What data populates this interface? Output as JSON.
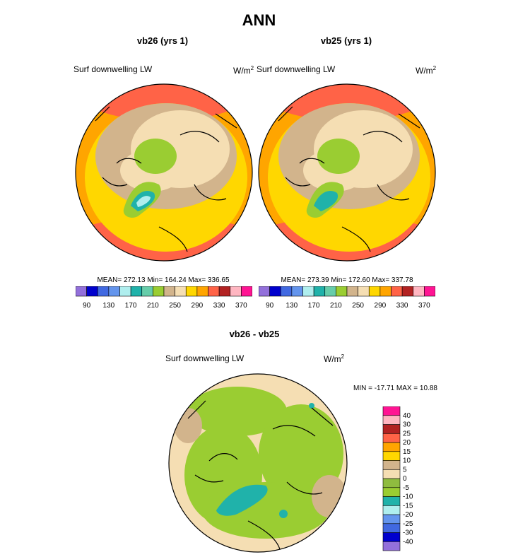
{
  "main_title": "ANN",
  "panels": [
    {
      "title": "vb26 (yrs 1)",
      "field_label": "Surf downwelling LW",
      "unit": "W/m",
      "unit_exp": "2",
      "stats": "MEAN= 272.13  Min= 164.24  Max= 336.65",
      "center_value": "180-190"
    },
    {
      "title": "vb25 (yrs 1)",
      "field_label": "Surf downwelling LW",
      "unit": "W/m",
      "unit_exp": "2",
      "stats": "MEAN= 273.39  Min= 172.60  Max= 337.78",
      "center_value": "190-200"
    }
  ],
  "diff_panel": {
    "title": "vb26 - vb25",
    "field_label": "Surf downwelling LW",
    "unit": "W/m",
    "unit_exp": "2",
    "stats": "MIN = -17.71 MAX =  10.88"
  },
  "colorbar_abs": {
    "colors": [
      "#9370db",
      "#0000cd",
      "#4169e1",
      "#6495ed",
      "#afeeee",
      "#20b2aa",
      "#66cdaa",
      "#9acd32",
      "#d2b48c",
      "#f5deb3",
      "#ffd700",
      "#ffa500",
      "#ff6347",
      "#b22222",
      "#ffb6c1",
      "#ff1493"
    ],
    "tick_labels": [
      "90",
      "130",
      "170",
      "210",
      "250",
      "290",
      "330",
      "370"
    ]
  },
  "colorbar_diff": {
    "colors": [
      "#9370db",
      "#0000cd",
      "#4169e1",
      "#6495ed",
      "#afeeee",
      "#20b2aa",
      "#9acd32",
      "#8fbc3f",
      "#f5deb3",
      "#d2b48c",
      "#ffd700",
      "#ffa500",
      "#ff6347",
      "#b22222",
      "#ffb6c1",
      "#ff1493"
    ],
    "tick_labels": [
      "40",
      "30",
      "25",
      "20",
      "15",
      "10",
      "5",
      "0",
      "-5",
      "-10",
      "-15",
      "-20",
      "-25",
      "-30",
      "-40"
    ]
  },
  "chart_data": [
    {
      "type": "heatmap",
      "title": "vb26 (yrs 1)",
      "variable": "Surf downwelling LW",
      "units": "W/m2",
      "projection": "polar stereographic (north)",
      "mean": 272.13,
      "min": 164.24,
      "max": 336.65,
      "contour_levels": [
        90,
        100,
        110,
        120,
        130,
        140,
        150,
        160,
        170,
        180,
        190,
        200,
        210,
        220,
        230,
        240,
        250,
        260,
        270,
        280,
        290,
        300,
        310,
        320,
        330,
        340,
        350,
        360,
        370
      ]
    },
    {
      "type": "heatmap",
      "title": "vb25 (yrs 1)",
      "variable": "Surf downwelling LW",
      "units": "W/m2",
      "projection": "polar stereographic (north)",
      "mean": 273.39,
      "min": 172.6,
      "max": 337.78,
      "contour_levels": [
        90,
        100,
        110,
        120,
        130,
        140,
        150,
        160,
        170,
        180,
        190,
        200,
        210,
        220,
        230,
        240,
        250,
        260,
        270,
        280,
        290,
        300,
        310,
        320,
        330,
        340,
        350,
        360,
        370
      ]
    },
    {
      "type": "heatmap",
      "title": "vb26 - vb25",
      "variable": "Surf downwelling LW",
      "units": "W/m2",
      "projection": "polar stereographic (north)",
      "min": -17.71,
      "max": 10.88,
      "contour_levels": [
        -40,
        -30,
        -25,
        -20,
        -15,
        -10,
        -5,
        0,
        5,
        10,
        15,
        20,
        25,
        30,
        40
      ]
    }
  ]
}
